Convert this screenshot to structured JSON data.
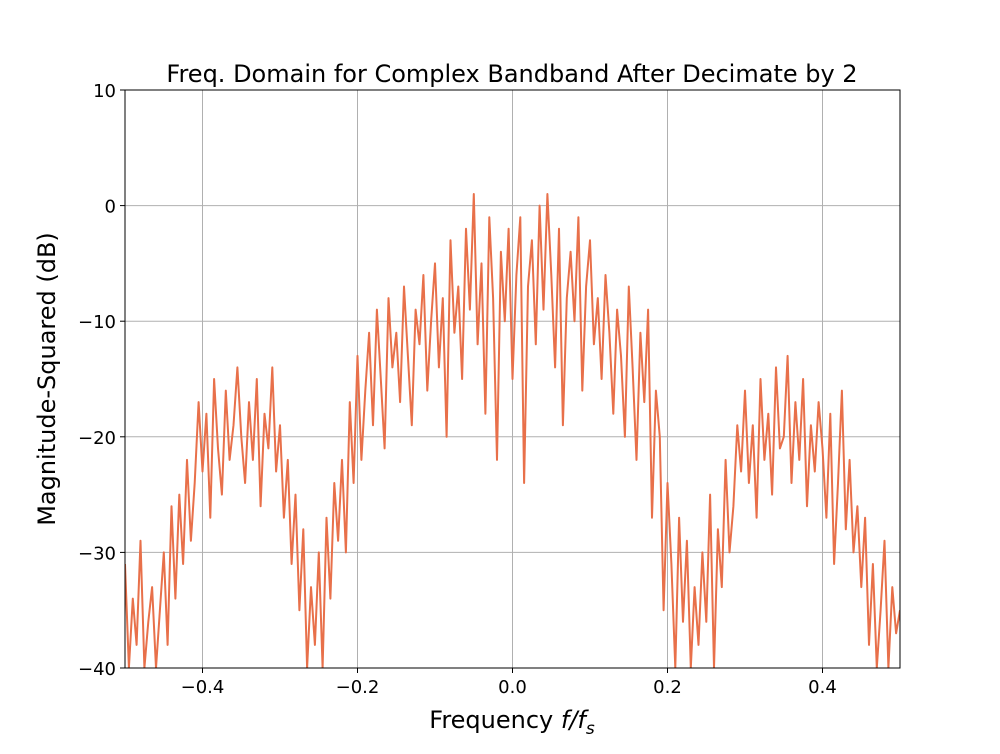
{
  "chart_data": {
    "type": "line",
    "title": "Freq. Domain for Complex Bandband After Decimate by 2",
    "xlabel": "Frequency f/f_s",
    "xlabel_parts": {
      "main": "Frequency ",
      "italic": "f/f",
      "sub": "s"
    },
    "ylabel": "Magnitude-Squared (dB)",
    "xlim": [
      -0.5,
      0.5
    ],
    "ylim": [
      -40,
      10
    ],
    "grid": true,
    "line_color": "#e8704a",
    "grid_color": "#b0b0b0",
    "xticks": [
      -0.4,
      -0.2,
      0.0,
      0.2,
      0.4
    ],
    "xtick_labels": [
      "−0.4",
      "−0.2",
      "0.0",
      "0.2",
      "0.4"
    ],
    "yticks": [
      10,
      0,
      -10,
      -20,
      -30,
      -40
    ],
    "ytick_labels": [
      "10",
      "0",
      "−10",
      "−20",
      "−30",
      "−40"
    ],
    "series": [
      {
        "x_start": -0.5,
        "x_step": 0.005,
        "values": [
          -31,
          -40,
          -34,
          -38,
          -29,
          -40,
          -36,
          -33,
          -40,
          -35,
          -30,
          -38,
          -26,
          -34,
          -25,
          -31,
          -22,
          -29,
          -24,
          -17,
          -23,
          -18,
          -27,
          -15,
          -21,
          -25,
          -16,
          -22,
          -19,
          -14,
          -20,
          -24,
          -17,
          -22,
          -15,
          -26,
          -18,
          -21,
          -14,
          -23,
          -19,
          -27,
          -22,
          -31,
          -25,
          -35,
          -28,
          -40,
          -33,
          -38,
          -30,
          -40,
          -27,
          -34,
          -24,
          -29,
          -22,
          -30,
          -17,
          -24,
          -13,
          -22,
          -16,
          -11,
          -19,
          -9,
          -15,
          -21,
          -8,
          -14,
          -11,
          -17,
          -7,
          -13,
          -19,
          -9,
          -12,
          -6,
          -16,
          -10,
          -5,
          -14,
          -8,
          -20,
          -3,
          -11,
          -7,
          -15,
          -2,
          -9,
          1,
          -12,
          -5,
          -18,
          -1,
          -8,
          -22,
          -4,
          -10,
          -2,
          -15,
          -6,
          -1,
          -24,
          -7,
          -3,
          -12,
          0,
          -9,
          1,
          -6,
          -14,
          -2,
          -19,
          -8,
          -4,
          -10,
          -1,
          -16,
          -7,
          -3,
          -12,
          -8,
          -15,
          -6,
          -11,
          -18,
          -9,
          -13,
          -20,
          -7,
          -14,
          -22,
          -11,
          -17,
          -9,
          -27,
          -16,
          -20,
          -35,
          -24,
          -31,
          -40,
          -27,
          -36,
          -29,
          -40,
          -33,
          -38,
          -30,
          -36,
          -25,
          -40,
          -28,
          -33,
          -22,
          -30,
          -26,
          -19,
          -23,
          -16,
          -24,
          -19,
          -27,
          -15,
          -22,
          -18,
          -25,
          -14,
          -21,
          -20,
          -13,
          -24,
          -17,
          -22,
          -15,
          -26,
          -19,
          -23,
          -17,
          -21,
          -27,
          -18,
          -31,
          -24,
          -16,
          -28,
          -22,
          -30,
          -26,
          -33,
          -27,
          -38,
          -31,
          -40,
          -35,
          -29,
          -40,
          -33,
          -37,
          -35
        ]
      }
    ]
  }
}
